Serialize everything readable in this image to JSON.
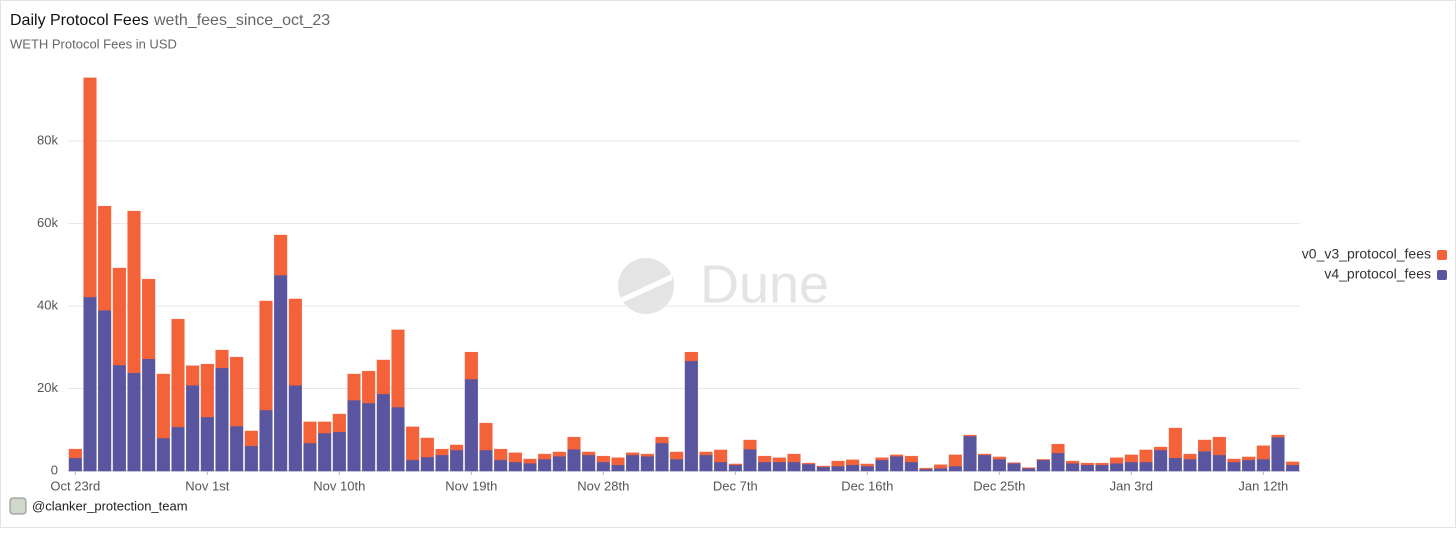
{
  "chart_data": {
    "type": "stacked_bar",
    "title": "Daily Protocol Fees",
    "query_name": "weth_fees_since_oct_23",
    "subtitle": "WETH Protocol Fees in USD",
    "watermark": "Dune",
    "author": "@clanker_protection_team",
    "categories": [
      "Oct 23rd",
      null,
      null,
      null,
      null,
      null,
      null,
      null,
      null,
      "Nov 1st",
      null,
      null,
      null,
      null,
      null,
      null,
      null,
      null,
      "Nov 10th",
      null,
      null,
      null,
      null,
      null,
      null,
      null,
      null,
      "Nov 19th",
      null,
      null,
      null,
      null,
      null,
      null,
      null,
      null,
      "Nov 28th",
      null,
      null,
      null,
      null,
      null,
      null,
      null,
      null,
      "Dec 7th",
      null,
      null,
      null,
      null,
      null,
      null,
      null,
      null,
      "Dec 16th",
      null,
      null,
      null,
      null,
      null,
      null,
      null,
      null,
      "Dec 25th",
      null,
      null,
      null,
      null,
      null,
      null,
      null,
      null,
      "Jan 3rd",
      null,
      null,
      null,
      null,
      null,
      null,
      null,
      null,
      "Jan 12th",
      null,
      null
    ],
    "series": [
      {
        "name": "v4_protocol_fees",
        "color": "#59559e",
        "values": [
          3200,
          42200,
          39000,
          25700,
          23800,
          27200,
          8000,
          10700,
          20800,
          13100,
          25000,
          10900,
          6100,
          14800,
          47500,
          20800,
          6800,
          9200,
          9500,
          17200,
          16500,
          18700,
          15500,
          2700,
          3400,
          3900,
          5100,
          22300,
          5100,
          2700,
          2200,
          1900,
          2900,
          3600,
          5300,
          3900,
          2200,
          1500,
          3900,
          3600,
          6800,
          2900,
          26700,
          3900,
          2200,
          1500,
          5300,
          2200,
          2200,
          2200,
          1700,
          1000,
          1200,
          1500,
          1200,
          2700,
          3600,
          2200,
          500,
          700,
          1200,
          8500,
          3900,
          2900,
          1900,
          700,
          2700,
          4400,
          1900,
          1500,
          1500,
          1900,
          2200,
          2200,
          5100,
          3200,
          2900,
          4800,
          3900,
          2200,
          2700,
          2900,
          8200,
          1500
        ]
      },
      {
        "name": "v0_v3_protocol_fees",
        "color": "#f4623a",
        "values": [
          2100,
          53100,
          25200,
          23500,
          39200,
          19300,
          15500,
          26100,
          4700,
          12800,
          4300,
          16700,
          3600,
          26400,
          9700,
          20900,
          5100,
          2700,
          4300,
          6300,
          7700,
          8200,
          18700,
          8000,
          4600,
          1400,
          1200,
          6500,
          6500,
          2600,
          2200,
          1000,
          1200,
          1000,
          2900,
          700,
          1400,
          1700,
          500,
          500,
          1400,
          1700,
          2100,
          700,
          2900,
          200,
          2200,
          1400,
          1000,
          1900,
          200,
          200,
          1200,
          1200,
          500,
          500,
          300,
          1400,
          200,
          800,
          2700,
          200,
          200,
          500,
          100,
          100,
          100,
          2100,
          500,
          400,
          400,
          1300,
          1700,
          2900,
          700,
          7200,
          1200,
          2700,
          4300,
          700,
          700,
          3200,
          500,
          700
        ]
      }
    ],
    "ylim": [
      0,
      100000
    ],
    "yticks": [
      0,
      {
        "value": 20000,
        "label": "20k"
      },
      {
        "value": 40000,
        "label": "40k"
      },
      {
        "value": 60000,
        "label": "60k"
      },
      {
        "value": 80000,
        "label": "80k"
      }
    ],
    "grid": true,
    "legend": "right"
  }
}
